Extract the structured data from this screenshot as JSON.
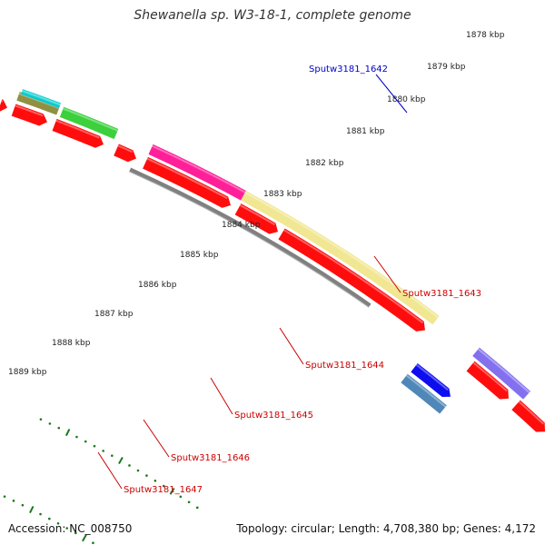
{
  "title": "Shewanella sp. W3-18-1, complete genome",
  "ticks": [
    "1878 kbp",
    "1879 kbp",
    "1880 kbp",
    "1881 kbp",
    "1882 kbp",
    "1883 kbp",
    "1884 kbp",
    "1885 kbp",
    "1886 kbp",
    "1887 kbp",
    "1888 kbp",
    "1889 kbp"
  ],
  "genes": [
    {
      "name": "Sputw3181_1642",
      "color": "#0000cc"
    },
    {
      "name": "Sputw3181_1643",
      "color": "#cc0000"
    },
    {
      "name": "Sputw3181_1644",
      "color": "#cc0000"
    },
    {
      "name": "Sputw3181_1645",
      "color": "#cc0000"
    },
    {
      "name": "Sputw3181_1646",
      "color": "#cc0000"
    },
    {
      "name": "Sputw3181_1647",
      "color": "#cc0000"
    }
  ],
  "colors": {
    "backbone": "#808080",
    "forward_feature": "#ff0000",
    "tick": "#1a7a1a",
    "cog_blue": "#0000ee",
    "cog_steel": "#4682b4",
    "cog_purple": "#7b68ee",
    "cog_khaki": "#f0e68c",
    "cog_pink": "#ff1493",
    "cog_green": "#32cd32",
    "cog_cyan": "#00ced1"
  },
  "footer": {
    "accession": "Accession: NC_008750",
    "summary": "Topology: circular; Length: 4,708,380 bp; Genes: 4,172"
  }
}
